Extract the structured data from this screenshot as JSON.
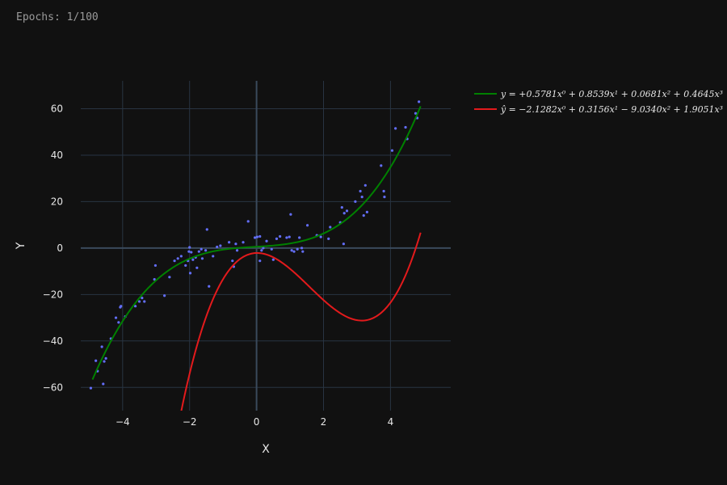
{
  "header": {
    "epoch_text": "Epochs: 1/100"
  },
  "colors": {
    "background": "#111111",
    "grid": "#283442",
    "zeroline": "#3a4a5c",
    "points": "#636efa",
    "true_curve": "#008000",
    "pred_curve": "#e31a1c"
  },
  "chart_data": {
    "type": "scatter",
    "xlabel": "X",
    "ylabel": "Y",
    "xlim": [
      -5.25,
      5.8
    ],
    "ylim": [
      -70,
      72
    ],
    "x_ticks": [
      -4,
      -2,
      0,
      2,
      4
    ],
    "x_tick_labels": [
      "−4",
      "−2",
      "0",
      "2",
      "4"
    ],
    "y_ticks": [
      -60,
      -40,
      -20,
      0,
      20,
      40,
      60
    ],
    "y_tick_labels": [
      "−60",
      "−40",
      "−20",
      "0",
      "20",
      "40",
      "60"
    ],
    "grid": true,
    "legend_position": "top-right-outside",
    "series": [
      {
        "name": "y = +0.5781x⁰ + 0.8539x¹ + 0.0681x² + 0.4645x³",
        "kind": "line",
        "color": "#008000",
        "coefficients": [
          0.5781,
          0.8539,
          0.0681,
          0.4645
        ],
        "x_range": [
          -4.9,
          4.9
        ]
      },
      {
        "name": "ŷ = −2.1282x⁰ + 0.3156x¹ − 9.0340x² + 1.9051x³",
        "kind": "line",
        "color": "#e31a1c",
        "coefficients": [
          -2.1282,
          0.3156,
          -9.034,
          1.9051
        ],
        "x_range": [
          -2.3,
          4.9
        ]
      },
      {
        "kind": "points",
        "color": "#636efa",
        "points": [
          [
            -4.95,
            -60.3
          ],
          [
            -4.8,
            -48.5
          ],
          [
            -4.75,
            -53
          ],
          [
            -4.62,
            -42.5
          ],
          [
            -4.58,
            -58.5
          ],
          [
            -4.55,
            -48.8
          ],
          [
            -4.5,
            -47.5
          ],
          [
            -4.35,
            -39
          ],
          [
            -4.2,
            -30
          ],
          [
            -4.12,
            -32
          ],
          [
            -4.07,
            -25.5
          ],
          [
            -4.05,
            -25
          ],
          [
            -3.92,
            -29.5
          ],
          [
            -3.62,
            -25
          ],
          [
            -3.5,
            -23
          ],
          [
            -3.42,
            -21.5
          ],
          [
            -3.35,
            -23
          ],
          [
            -3.05,
            -13.5
          ],
          [
            -3.02,
            -7.5
          ],
          [
            -2.75,
            -20.5
          ],
          [
            -2.6,
            -12.5
          ],
          [
            -2.45,
            -5.5
          ],
          [
            -2.35,
            -4.5
          ],
          [
            -2.25,
            -3.5
          ],
          [
            -2.12,
            -7.5
          ],
          [
            -2.05,
            -5.5
          ],
          [
            -2.02,
            -1.5
          ],
          [
            -2.0,
            0.3
          ],
          [
            -1.98,
            -10.8
          ],
          [
            -1.95,
            -1.8
          ],
          [
            -1.9,
            -5
          ],
          [
            -1.82,
            -4
          ],
          [
            -1.78,
            -8.5
          ],
          [
            -1.72,
            -1.5
          ],
          [
            -1.65,
            -0.5
          ],
          [
            -1.62,
            -4.5
          ],
          [
            -1.52,
            -1
          ],
          [
            -1.48,
            8
          ],
          [
            -1.42,
            -16.5
          ],
          [
            -1.3,
            -3.5
          ],
          [
            -1.18,
            0.5
          ],
          [
            -1.08,
            1
          ],
          [
            -0.82,
            2.5
          ],
          [
            -0.72,
            -5.5
          ],
          [
            -0.68,
            -8
          ],
          [
            -0.62,
            1.8
          ],
          [
            -0.58,
            -1
          ],
          [
            -0.4,
            2.5
          ],
          [
            -0.25,
            11.5
          ],
          [
            -0.05,
            4.5
          ],
          [
            0.02,
            4.8
          ],
          [
            0.1,
            5
          ],
          [
            0.1,
            -5.5
          ],
          [
            0.15,
            -1
          ],
          [
            0.2,
            0
          ],
          [
            0.3,
            3
          ],
          [
            0.45,
            -0.5
          ],
          [
            0.5,
            -5
          ],
          [
            0.6,
            4
          ],
          [
            0.7,
            5
          ],
          [
            0.9,
            4.5
          ],
          [
            0.98,
            4.8
          ],
          [
            1.02,
            14.5
          ],
          [
            1.05,
            -1
          ],
          [
            1.12,
            -1.5
          ],
          [
            1.22,
            -0.5
          ],
          [
            1.28,
            4.5
          ],
          [
            1.35,
            0
          ],
          [
            1.38,
            -1.5
          ],
          [
            1.52,
            9.8
          ],
          [
            1.8,
            5.5
          ],
          [
            1.92,
            4.8
          ],
          [
            2.15,
            4
          ],
          [
            2.2,
            9
          ],
          [
            2.5,
            11
          ],
          [
            2.55,
            17.5
          ],
          [
            2.6,
            1.8
          ],
          [
            2.62,
            15
          ],
          [
            2.7,
            16
          ],
          [
            2.95,
            20
          ],
          [
            3.1,
            24.5
          ],
          [
            3.15,
            22
          ],
          [
            3.2,
            14
          ],
          [
            3.25,
            27
          ],
          [
            3.3,
            15.5
          ],
          [
            3.72,
            35.5
          ],
          [
            3.8,
            24.5
          ],
          [
            3.82,
            22
          ],
          [
            4.05,
            42
          ],
          [
            4.15,
            51.5
          ],
          [
            4.45,
            52
          ],
          [
            4.5,
            47
          ],
          [
            4.75,
            58
          ],
          [
            4.8,
            56
          ],
          [
            4.85,
            63
          ]
        ]
      }
    ]
  }
}
